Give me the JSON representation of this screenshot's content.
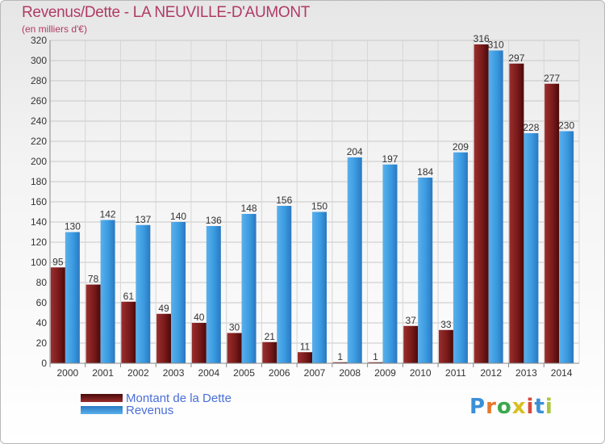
{
  "header": {
    "title": "Revenus/Dette - LA NEUVILLE-D'AUMONT",
    "subtitle": "(en milliers d'€)"
  },
  "logo": {
    "text": "Proxiti",
    "colors": [
      "#3a8fd8",
      "#e8782a",
      "#3aa84a",
      "#d8c020",
      "#d84a3a",
      "#3a8fd8",
      "#a8c83a"
    ]
  },
  "colors": {
    "dette": "#7a1a1a",
    "revenus": "#3a9ae0"
  },
  "chart_data": {
    "type": "bar",
    "categories": [
      "2000",
      "2001",
      "2002",
      "2003",
      "2004",
      "2005",
      "2006",
      "2007",
      "2008",
      "2009",
      "2010",
      "2011",
      "2012",
      "2013",
      "2014"
    ],
    "series": [
      {
        "name": "Montant de la Dette",
        "values": [
          95,
          78,
          61,
          49,
          40,
          30,
          21,
          11,
          1,
          1,
          37,
          33,
          316,
          297,
          277
        ]
      },
      {
        "name": "Revenus",
        "values": [
          130,
          142,
          137,
          140,
          136,
          148,
          156,
          150,
          204,
          197,
          184,
          209,
          310,
          228,
          230
        ]
      }
    ],
    "ylim": [
      0,
      320
    ],
    "yticks": [
      0,
      20,
      40,
      60,
      80,
      100,
      120,
      140,
      160,
      180,
      200,
      220,
      240,
      260,
      280,
      300,
      320
    ],
    "grid": true,
    "legend_position": "bottom-left"
  }
}
